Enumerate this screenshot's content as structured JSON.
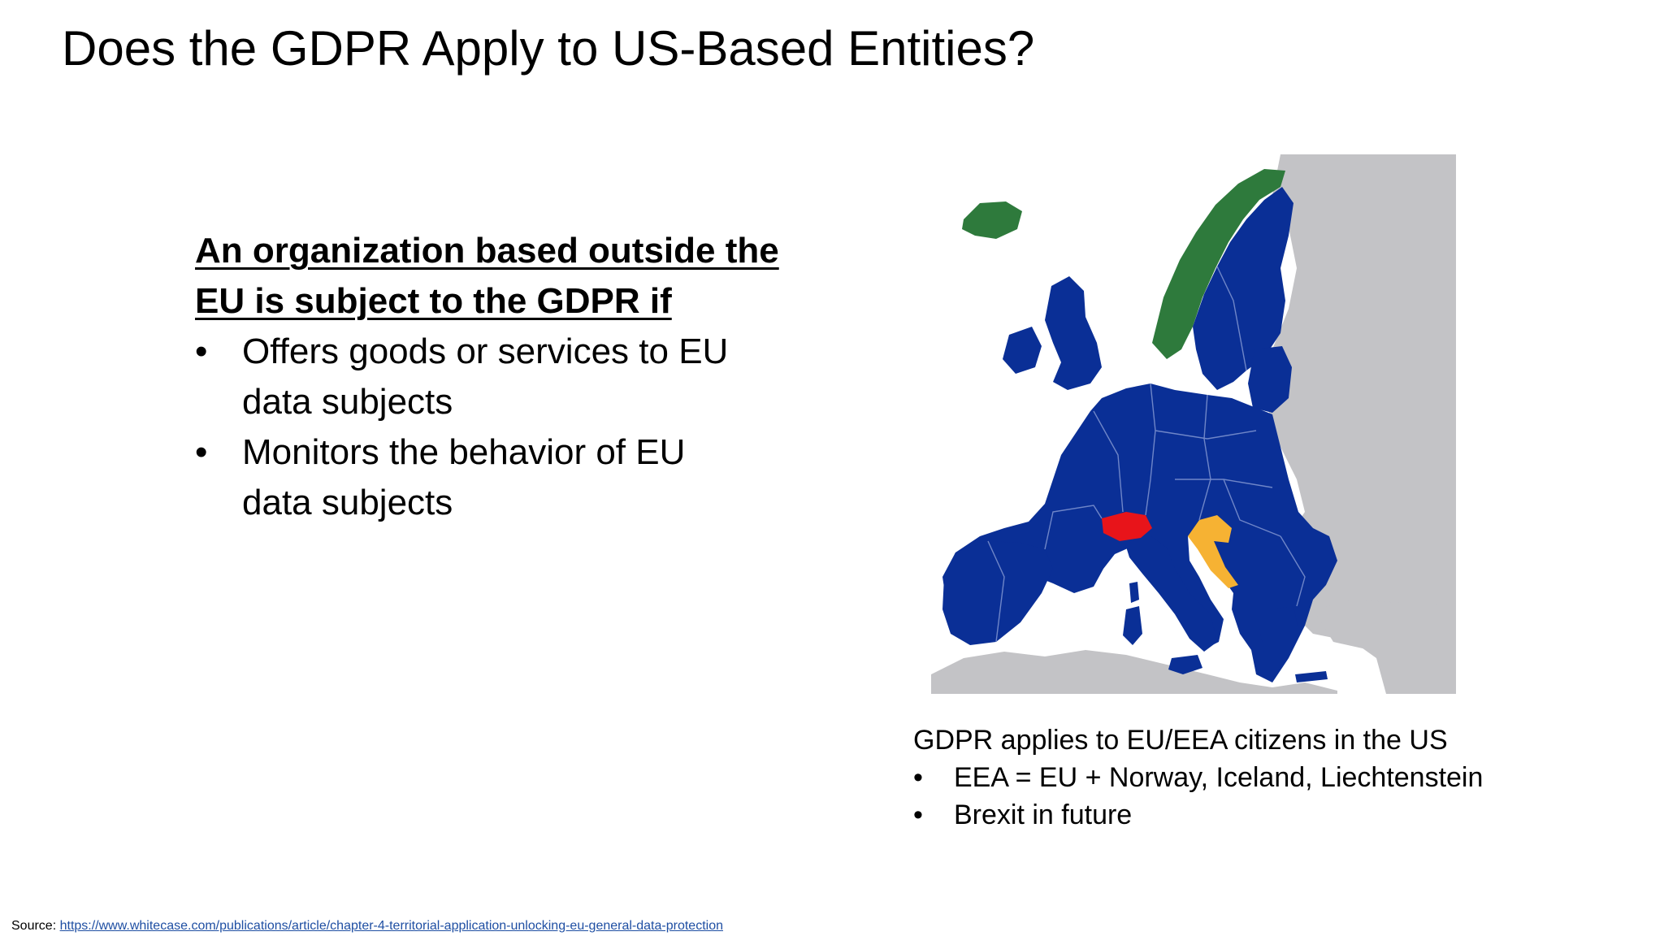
{
  "slide": {
    "title": "Does the GDPR Apply to US-Based Entities?"
  },
  "left": {
    "heading_line1": "An organization based outside the",
    "heading_line2": "EU is subject to the GDPR if",
    "bullets": [
      {
        "line1": "Offers goods or services to EU",
        "line2": "data subjects"
      },
      {
        "line1": "Monitors the behavior of EU",
        "line2": "data subjects"
      }
    ],
    "bullet_glyph": "•"
  },
  "map": {
    "colors": {
      "sea": "#ffffff",
      "non_eu_land": "#c3c3c6",
      "eu": "#0a2f96",
      "eea": "#2e7a3c",
      "switzerland": "#e8141a",
      "croatia": "#f6b233",
      "border": "#6f86c8"
    }
  },
  "caption": {
    "main": "GDPR applies to EU/EEA citizens in the US",
    "bullets": [
      "EEA = EU + Norway, Iceland, Liechtenstein",
      "Brexit in future"
    ],
    "bullet_glyph": "•"
  },
  "footer": {
    "source_label": "Source: ",
    "source_link": "https://www.whitecase.com/publications/article/chapter-4-territorial-application-unlocking-eu-general-data-protection"
  }
}
